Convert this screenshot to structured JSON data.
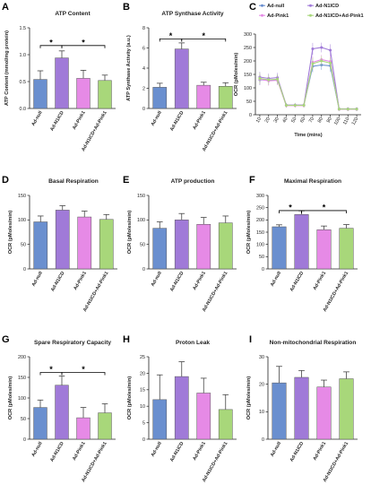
{
  "figure": {
    "colors": [
      "#6a8fcf",
      "#a07ad8",
      "#e68ae6",
      "#a8d77a"
    ],
    "error_color": "#444444"
  },
  "chart_data": [
    {
      "panel": "A",
      "type": "bar",
      "title": "ATP Content",
      "ylabel": "ATP Content (mmol/mg protein)",
      "xlabel": "",
      "ylim": [
        0,
        1.5
      ],
      "yticks": [
        0.0,
        0.5,
        1.0,
        1.5
      ],
      "ytick_labels": [
        "0.0",
        "0.5",
        "1.0",
        "1.5"
      ],
      "categories": [
        "Ad-null",
        "Ad-N1ICD",
        "Ad-Pink1",
        "Ad-N1ICD+Ad-Pink1"
      ],
      "values": [
        0.54,
        0.94,
        0.56,
        0.52
      ],
      "errors": [
        0.16,
        0.13,
        0.15,
        0.1
      ],
      "significance": [
        {
          "from": 0,
          "to": 1,
          "level": 1.17,
          "label": "*"
        },
        {
          "from": 1,
          "to": 3,
          "level": 1.17,
          "label": "*"
        }
      ]
    },
    {
      "panel": "B",
      "type": "bar",
      "title": "ATP Synthase Activity",
      "ylabel": "ATP Synthase Activity (a.u.)",
      "xlabel": "",
      "ylim": [
        0,
        8
      ],
      "yticks": [
        0,
        2,
        4,
        6,
        8
      ],
      "ytick_labels": [
        "0",
        "2",
        "4",
        "6",
        "8"
      ],
      "categories": [
        "Ad-null",
        "Ad-N1ICD",
        "Ad-Pink1",
        "Ad-N1ICD+Ad-Pink1"
      ],
      "values": [
        2.1,
        5.9,
        2.3,
        2.2
      ],
      "errors": [
        0.4,
        0.6,
        0.3,
        0.35
      ],
      "significance": [
        {
          "from": 0,
          "to": 1,
          "level": 6.9,
          "label": "*"
        },
        {
          "from": 1,
          "to": 3,
          "level": 6.9,
          "label": "*"
        }
      ]
    },
    {
      "panel": "C",
      "type": "line",
      "title": "",
      "ylabel": "OCR (pMoles/min)",
      "xlabel": "Time (mins)",
      "ylim": [
        0,
        300
      ],
      "yticks": [
        0,
        50,
        100,
        150,
        200,
        250,
        300
      ],
      "ytick_labels": [
        "0",
        "50",
        "100",
        "150",
        "200",
        "250",
        "300"
      ],
      "x": [
        10,
        20,
        30,
        40,
        50,
        60,
        70,
        80,
        90,
        100,
        110,
        120
      ],
      "legend": "top",
      "series": [
        {
          "name": "Ad-null",
          "values": [
            130,
            128,
            130,
            35,
            35,
            35,
            180,
            185,
            182,
            20,
            20,
            20
          ]
        },
        {
          "name": "Ad-N1ICD",
          "values": [
            140,
            135,
            138,
            36,
            36,
            36,
            245,
            250,
            240,
            22,
            22,
            22
          ]
        },
        {
          "name": "Ad-Pink1",
          "values": [
            132,
            126,
            128,
            34,
            34,
            34,
            195,
            205,
            198,
            20,
            20,
            20
          ]
        },
        {
          "name": "Ad-N1ICD+Ad-Pink1",
          "values": [
            135,
            130,
            132,
            35,
            35,
            35,
            190,
            200,
            192,
            21,
            21,
            21
          ]
        }
      ],
      "errors": [
        20,
        18,
        18,
        8,
        8,
        8,
        22,
        18,
        22,
        6,
        6,
        6
      ]
    },
    {
      "panel": "D",
      "type": "bar",
      "title": "Basal Respiration",
      "ylabel": "OCR (pMoles/min)",
      "xlabel": "",
      "ylim": [
        0,
        150
      ],
      "yticks": [
        0,
        50,
        100,
        150
      ],
      "ytick_labels": [
        "0",
        "50",
        "100",
        "150"
      ],
      "categories": [
        "Ad-null",
        "Ad-N1ICD",
        "Ad-Pink1",
        "Ad-N1ICD+Ad-Pink1"
      ],
      "values": [
        96,
        120,
        106,
        101
      ],
      "errors": [
        12,
        9,
        12,
        10
      ],
      "significance": []
    },
    {
      "panel": "E",
      "type": "bar",
      "title": "ATP production",
      "ylabel": "OCR (pMoles/min)",
      "xlabel": "",
      "ylim": [
        0,
        150
      ],
      "yticks": [
        0,
        50,
        100,
        150
      ],
      "ytick_labels": [
        "0",
        "50",
        "100",
        "150"
      ],
      "categories": [
        "Ad-null",
        "Ad-N1ICD",
        "Ad-Pink1",
        "Ad-N1ICD+Ad-Pink1"
      ],
      "values": [
        83,
        100,
        91,
        94
      ],
      "errors": [
        13,
        13,
        14,
        14
      ],
      "significance": []
    },
    {
      "panel": "F",
      "type": "bar",
      "title": "Maximal Respiration",
      "ylabel": "OCR (pMoles/min)",
      "xlabel": "",
      "ylim": [
        0,
        300
      ],
      "yticks": [
        0,
        50,
        100,
        150,
        200,
        250,
        300
      ],
      "ytick_labels": [
        "0",
        "50",
        "100",
        "150",
        "200",
        "250",
        "300"
      ],
      "categories": [
        "Ad-null",
        "Ad-N1ICD",
        "Ad-Pink1",
        "Ad-N1ICD+Ad-Pink1"
      ],
      "values": [
        172,
        222,
        160,
        166
      ],
      "errors": [
        8,
        15,
        15,
        15
      ],
      "significance": [
        {
          "from": 0,
          "to": 1,
          "level": 238,
          "label": "*"
        },
        {
          "from": 1,
          "to": 3,
          "level": 238,
          "label": "*"
        }
      ]
    },
    {
      "panel": "G",
      "type": "bar",
      "title": "Spare Respiratory Capacity",
      "ylabel": "OCR (pMoles/min)",
      "xlabel": "",
      "ylim": [
        0,
        200
      ],
      "yticks": [
        0,
        50,
        100,
        150,
        200
      ],
      "ytick_labels": [
        "0",
        "50",
        "100",
        "150",
        "200"
      ],
      "categories": [
        "Ad-null",
        "Ad-N1ICD",
        "Ad-Pink1",
        "Ad-N1ICD+Ad-Pink1"
      ],
      "values": [
        77,
        131,
        52,
        64
      ],
      "errors": [
        18,
        22,
        25,
        22
      ],
      "significance": [
        {
          "from": 0,
          "to": 1,
          "level": 162,
          "label": "*"
        },
        {
          "from": 1,
          "to": 3,
          "level": 162,
          "label": "*"
        }
      ]
    },
    {
      "panel": "H",
      "type": "bar",
      "title": "Proton Leak",
      "ylabel": "OCR (pMoles/min)",
      "xlabel": "",
      "ylim": [
        0,
        25
      ],
      "yticks": [
        0,
        5,
        10,
        15,
        20,
        25
      ],
      "ytick_labels": [
        "0",
        "5",
        "10",
        "15",
        "20",
        "25"
      ],
      "categories": [
        "Ad-null",
        "Ad-N1ICD",
        "Ad-Pink1",
        "Ad-N1ICD+Ad-Pink1"
      ],
      "values": [
        12,
        19,
        14,
        9
      ],
      "errors": [
        7.5,
        4.5,
        4.5,
        4.5
      ],
      "significance": []
    },
    {
      "panel": "I",
      "type": "bar",
      "title": "Non-mitochondrial Respiration",
      "ylabel": "OCR (pMoles/min)",
      "xlabel": "",
      "ylim": [
        0,
        30
      ],
      "yticks": [
        0,
        10,
        20,
        30
      ],
      "ytick_labels": [
        "0",
        "10",
        "20",
        "30"
      ],
      "categories": [
        "Ad-null",
        "Ad-N1ICD",
        "Ad-Pink1",
        "Ad-N1ICD+Ad-Pink1"
      ],
      "values": [
        20.5,
        22.5,
        19,
        22
      ],
      "errors": [
        6,
        2.5,
        2.5,
        2.5
      ],
      "significance": []
    }
  ]
}
